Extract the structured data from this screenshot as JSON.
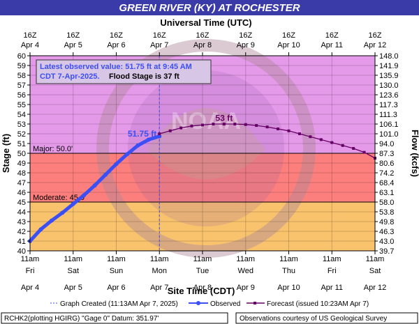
{
  "chart_data": {
    "type": "line",
    "title": "GREEN RIVER (KY) AT ROCHESTER",
    "top_axis_title": "Universal Time (UTC)",
    "xlabel": "Site Time (CDT)",
    "ylabel": "Stage (ft)",
    "y2label": "Flow (kcfs)",
    "ylim": [
      40,
      60
    ],
    "y_ticks": [
      40,
      41,
      42,
      43,
      44,
      45,
      46,
      47,
      48,
      49,
      50,
      51,
      52,
      53,
      54,
      55,
      56,
      57,
      58,
      59,
      60
    ],
    "flow_ticks": [
      "39.7",
      "43.0",
      "46.3",
      "49.8",
      "53.8",
      "58.0",
      "63.1",
      "68.4",
      "74.2",
      "80.6",
      "87.3",
      "94.0",
      "101.0",
      "106.1",
      "111.3",
      "117.3",
      "123.6",
      "130.0",
      "135.9",
      "141.9",
      "148.0"
    ],
    "top_ticks": [
      {
        "l1": "16Z",
        "l2": "Apr 4"
      },
      {
        "l1": "16Z",
        "l2": "Apr 5"
      },
      {
        "l1": "16Z",
        "l2": "Apr 6"
      },
      {
        "l1": "16Z",
        "l2": "Apr 7"
      },
      {
        "l1": "16Z",
        "l2": "Apr 8"
      },
      {
        "l1": "16Z",
        "l2": "Apr 9"
      },
      {
        "l1": "16Z",
        "l2": "Apr 10"
      },
      {
        "l1": "16Z",
        "l2": "Apr 11"
      },
      {
        "l1": "16Z",
        "l2": "Apr 12"
      }
    ],
    "bottom_ticks": [
      {
        "l1": "11am",
        "l2": "Fri",
        "l3": "Apr 4"
      },
      {
        "l1": "11am",
        "l2": "Sat",
        "l3": "Apr 5"
      },
      {
        "l1": "11am",
        "l2": "Sun",
        "l3": "Apr 6"
      },
      {
        "l1": "11am",
        "l2": "Mon",
        "l3": "Apr 7"
      },
      {
        "l1": "11am",
        "l2": "Tue",
        "l3": "Apr 8"
      },
      {
        "l1": "11am",
        "l2": "Wed",
        "l3": "Apr 9"
      },
      {
        "l1": "11am",
        "l2": "Thu",
        "l3": "Apr 10"
      },
      {
        "l1": "11am",
        "l2": "Fri",
        "l3": "Apr 11"
      },
      {
        "l1": "11am",
        "l2": "Sat",
        "l3": "Apr 12"
      }
    ],
    "bands": [
      {
        "name": "Major",
        "from": 50,
        "to": 60,
        "color": "#e59ae9"
      },
      {
        "name": "Flood",
        "from": 45,
        "to": 50,
        "color": "#fc7f7d"
      },
      {
        "name": "Moderate",
        "from": 40,
        "to": 45,
        "color": "#f9c36d"
      }
    ],
    "thresholds": [
      {
        "label": "Major: 50.0'",
        "value": 50
      },
      {
        "label": "Moderate: 45.0'",
        "value": 45
      }
    ],
    "graph_created_day": 3.0,
    "series": [
      {
        "name": "Observed",
        "color": "#3b4ff5",
        "x_days_from_apr4_11am": [
          0.0,
          0.25,
          0.5,
          0.75,
          1.0,
          1.25,
          1.5,
          1.75,
          2.0,
          2.25,
          2.5,
          2.75,
          3.0
        ],
        "values": [
          41.0,
          42.2,
          43.1,
          43.9,
          44.8,
          45.7,
          46.7,
          47.8,
          48.9,
          49.9,
          50.8,
          51.4,
          51.75
        ]
      },
      {
        "name": "Forecast (issued 10:23AM Apr 7)",
        "color": "#660066",
        "x_days_from_apr4_11am": [
          3.0,
          3.25,
          3.5,
          3.75,
          4.0,
          4.25,
          4.5,
          4.75,
          5.0,
          5.25,
          5.5,
          5.75,
          6.0,
          6.25,
          6.5,
          6.75,
          7.0,
          7.25,
          7.5,
          7.75,
          8.0
        ],
        "values": [
          52.0,
          52.3,
          52.6,
          52.8,
          52.9,
          53.0,
          53.0,
          53.0,
          52.95,
          52.85,
          52.7,
          52.5,
          52.3,
          52.0,
          51.7,
          51.4,
          51.1,
          50.8,
          50.5,
          50.1,
          49.5
        ]
      }
    ],
    "annotations": [
      {
        "text": "51.75 ft",
        "x": 2.6,
        "y": 52.0
      },
      {
        "text": "53 ft",
        "x": 4.5,
        "y": 53.6
      }
    ],
    "info_box": {
      "line1": "Latest observed value: 51.75 ft at 9:45 AM",
      "line2": "CDT 7-Apr-2025.",
      "line2b": "Flood Stage is 37 ft"
    },
    "legend": {
      "graph_created": "Graph Created (11:13AM Apr 7, 2025)",
      "observed": "Observed",
      "forecast": "Forecast (issued 10:23AM Apr 7)"
    },
    "footer_left": "RCHK2(plotting HGIRG) \"Gage 0\" Datum: 351.97'",
    "footer_right": "Observations courtesy of US Geological Survey"
  }
}
